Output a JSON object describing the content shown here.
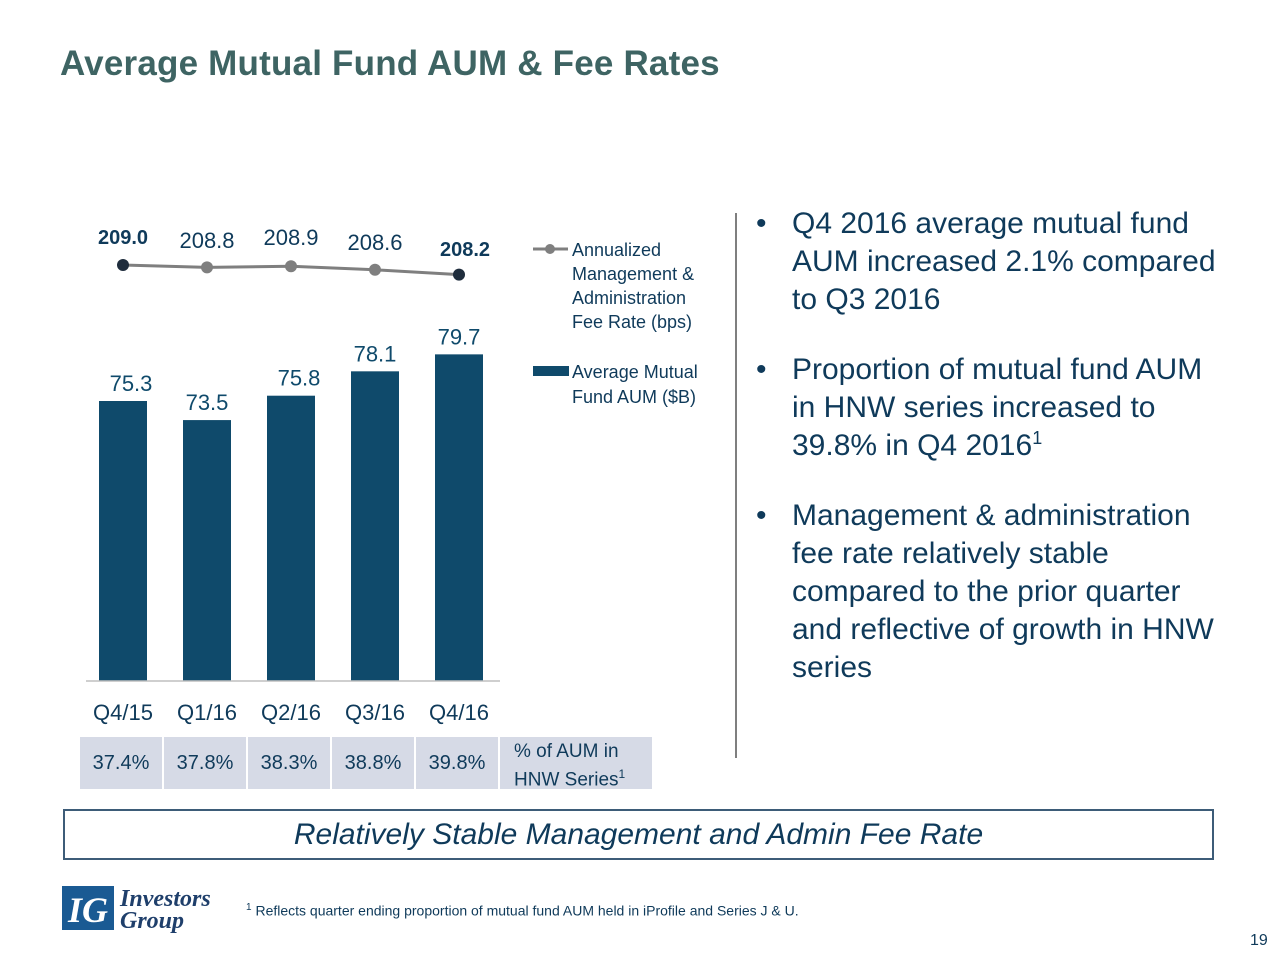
{
  "title": "Average Mutual Fund AUM & Fee Rates",
  "chart_data": {
    "type": "bar+line",
    "categories": [
      "Q4/15",
      "Q1/16",
      "Q2/16",
      "Q3/16",
      "Q4/16"
    ],
    "bar_series": {
      "name": "Average Mutual Fund AUM ($B)",
      "values": [
        75.3,
        73.5,
        75.8,
        78.1,
        79.7
      ],
      "labels": [
        "75.3",
        "73.5",
        "75.8",
        "78.1",
        "79.7"
      ],
      "color": "#0f4a6b"
    },
    "line_series": {
      "name": "Annualized Management & Administration Fee Rate (bps)",
      "values": [
        209.0,
        208.8,
        208.9,
        208.6,
        208.2
      ],
      "labels": [
        "209.0",
        "208.8",
        "208.9",
        "208.6",
        "208.2"
      ],
      "bold_labels": [
        true,
        false,
        false,
        false,
        true
      ],
      "color": "#7f7f7f",
      "marker_color": "#1f2d3d"
    },
    "legend": {
      "position": "right",
      "line_label": [
        "Annualized",
        "Management &",
        "Administration",
        "Fee Rate (bps)"
      ],
      "bar_label": [
        "Average Mutual",
        "Fund AUM ($B)"
      ]
    }
  },
  "hnw": {
    "values": [
      "37.4%",
      "37.8%",
      "38.3%",
      "38.8%",
      "39.8%"
    ],
    "label_line1": "% of AUM in",
    "label_line2": "HNW Series",
    "label_sup": "1"
  },
  "bullets": [
    {
      "dot": "•",
      "text": "Q4 2016 average mutual fund AUM increased 2.1% compared to Q3 2016",
      "sup": ""
    },
    {
      "dot": "•",
      "text": "Proportion of mutual fund AUM in HNW series increased to 39.8% in Q4 2016",
      "sup": "1"
    },
    {
      "dot": "•",
      "text": "Management & administration fee rate relatively stable compared to the prior quarter and reflective of growth in HNW series",
      "sup": ""
    }
  ],
  "banner": "Relatively Stable Management and Admin Fee Rate",
  "logo": {
    "line1": "Investors",
    "line2": "Group",
    "mark": "IG"
  },
  "footnote": {
    "sup": "1",
    "text": "Reflects quarter ending proportion of mutual fund AUM held in iProfile and Series J & U."
  },
  "page_number": "19",
  "colors": {
    "title": "#3e6463",
    "bar": "#0f4a6b",
    "text": "#0f3a5a",
    "line": "#7f7f7f"
  }
}
